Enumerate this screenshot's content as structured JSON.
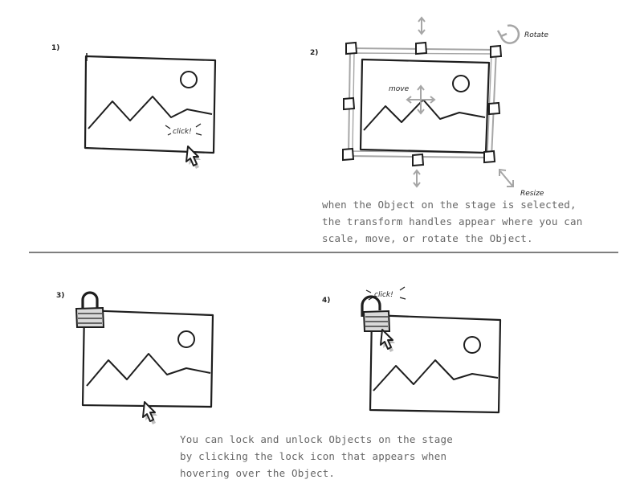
{
  "panels": {
    "p1": {
      "number": "1)",
      "click_label": "click!"
    },
    "p2": {
      "number": "2)",
      "rotate_label": "Rotate",
      "move_label": "move",
      "resize_label": "Resize",
      "caption_lines": [
        "when the Object on the stage is selected,",
        "the transform handles appear where you can",
        "scale, move, or rotate the Object."
      ]
    },
    "p3": {
      "number": "3)"
    },
    "p4": {
      "number": "4)",
      "click_label": "click!",
      "caption_lines": [
        "You can lock and unlock Objects on the stage",
        "by clicking the lock icon that appears when",
        "hovering over the Object."
      ]
    }
  },
  "colors": {
    "ink": "#1e1e1e",
    "handle_gray": "#a6a6a6",
    "caption_gray": "#6a6a6a",
    "shadow": "#bfbfbf"
  }
}
